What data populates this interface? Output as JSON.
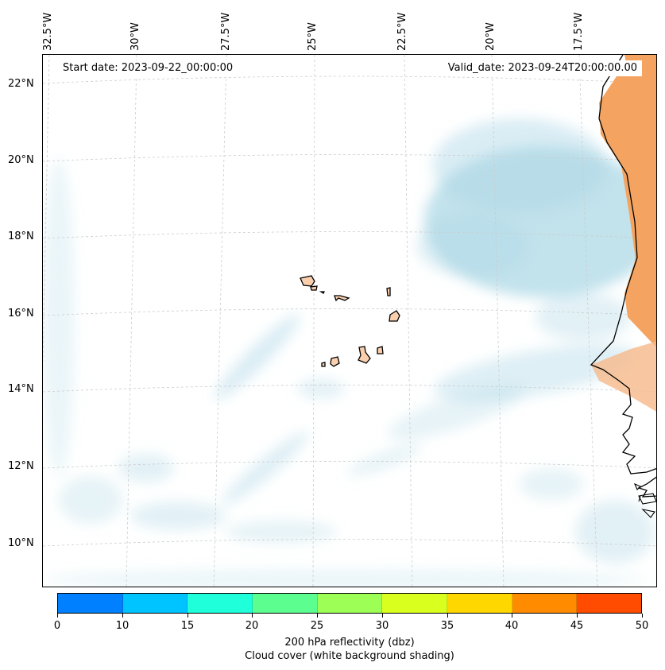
{
  "map": {
    "start_date": "Start date: 2023-09-22_00:00:00",
    "valid_date": "Valid_date: 2023-09-24T20:00:00.00",
    "lon_labels": [
      "32.5°W",
      "30°W",
      "27.5°W",
      "25°W",
      "22.5°W",
      "20°W",
      "17.5°W"
    ],
    "lat_labels": [
      "22°N",
      "20°N",
      "18°N",
      "16°N",
      "14°N",
      "12°N",
      "10°N"
    ]
  },
  "colorbar": {
    "colors": [
      "#0080ff",
      "#00c4ff",
      "#1fffd9",
      "#5cff8f",
      "#9dff55",
      "#d9ff1f",
      "#ffd700",
      "#ff8c00",
      "#ff4c00"
    ],
    "ticks": [
      "0",
      "5",
      "10",
      "15",
      "20",
      "25",
      "30",
      "35",
      "40",
      "45",
      "50"
    ],
    "tick_labels_shown": [
      "0",
      "10",
      "15",
      "20",
      "25",
      "30",
      "35",
      "40",
      "45",
      "50"
    ],
    "label_line1": "200 hPa reflectivity (dbz)",
    "label_line2": "Cloud cover (white background shading)"
  },
  "colors": {
    "cloud": "#add8e6",
    "land": "#f4a460",
    "coast": "#000000",
    "grid": "#cccccc"
  }
}
